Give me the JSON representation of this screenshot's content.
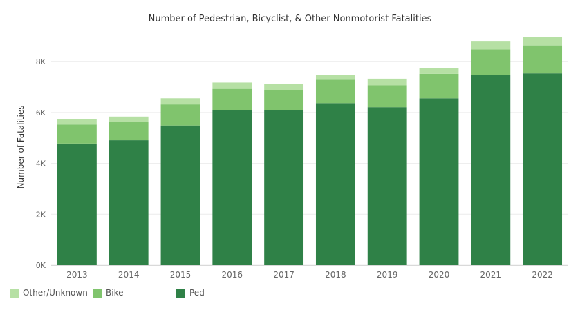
{
  "chart_data": {
    "type": "bar",
    "stacked": true,
    "title": "Number of Pedestrian, Bicyclist, & Other Nonmotorist Fatalities",
    "ylabel": "Number of Fatalities",
    "xlabel": "",
    "ylim": [
      0,
      9200
    ],
    "yticks": [
      0,
      2000,
      4000,
      6000,
      8000
    ],
    "ytick_labels": [
      "0K",
      "2K",
      "4K",
      "6K",
      "8K"
    ],
    "grid": true,
    "legend_position": "bottom-left",
    "categories": [
      "2013",
      "2014",
      "2015",
      "2016",
      "2017",
      "2018",
      "2019",
      "2020",
      "2021",
      "2022"
    ],
    "series": [
      {
        "name": "Ped",
        "color": "#2f8147",
        "values": [
          4780,
          4910,
          5490,
          6080,
          6080,
          6370,
          6210,
          6560,
          7490,
          7540
        ]
      },
      {
        "name": "Bike",
        "color": "#80c46d",
        "values": [
          750,
          730,
          830,
          850,
          800,
          920,
          860,
          960,
          990,
          1100
        ]
      },
      {
        "name": "Other/Unknown",
        "color": "#b6e0a4",
        "values": [
          200,
          200,
          240,
          250,
          250,
          190,
          260,
          240,
          310,
          340
        ]
      }
    ]
  },
  "legend": {
    "items": [
      {
        "label": "Other/Unknown",
        "color": "#b6e0a4"
      },
      {
        "label": "Bike",
        "color": "#80c46d"
      },
      {
        "label": "Ped",
        "color": "#2f8147"
      }
    ]
  }
}
